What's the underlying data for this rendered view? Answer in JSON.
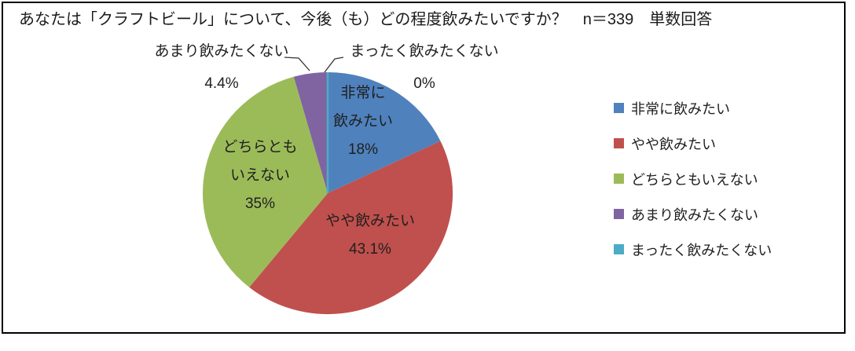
{
  "title": "あなたは「クラフトビール」について、今後（も）どの程度飲みたいですか？　n＝339　単数回答",
  "chart_data": {
    "type": "pie",
    "title": "あなたは「クラフトビール」について、今後（も）どの程度飲みたいですか？",
    "sample_size_label": "n＝339",
    "answer_type_label": "単数回答",
    "categories": [
      "非常に飲みたい",
      "やや飲みたい",
      "どちらともいえない",
      "あまり飲みたくない",
      "まったく飲みたくない"
    ],
    "values": [
      18,
      43.1,
      35,
      4.4,
      0
    ],
    "value_labels": [
      "18%",
      "43.1%",
      "35%",
      "4.4%",
      "0%"
    ],
    "unit": "percent",
    "colors": [
      "#4F81BD",
      "#C0504D",
      "#9BBB59",
      "#8064A2",
      "#4BACC6"
    ],
    "start_angle_deg": 0,
    "direction": "clockwise",
    "legend_position": "right",
    "grid": false
  },
  "slice_labels": {
    "strong": {
      "lines": [
        "非常に",
        "飲みたい",
        "18%"
      ]
    },
    "somewhat": {
      "lines": [
        "やや飲みたい",
        "43.1%"
      ]
    },
    "neutral": {
      "lines": [
        "どちらとも",
        "いえない",
        "35%"
      ]
    },
    "not_much": {
      "lines": [
        "あまり飲みたくない",
        "4.4%"
      ]
    },
    "not_at_all": {
      "lines": [
        "まったく飲みたくない",
        "0%"
      ]
    }
  },
  "legend": {
    "items": [
      {
        "label": "非常に飲みたい",
        "color": "#4F81BD"
      },
      {
        "label": "やや飲みたい",
        "color": "#C0504D"
      },
      {
        "label": "どちらともいえない",
        "color": "#9BBB59"
      },
      {
        "label": "あまり飲みたくない",
        "color": "#8064A2"
      },
      {
        "label": "まったく飲みたくない",
        "color": "#4BACC6"
      }
    ]
  }
}
